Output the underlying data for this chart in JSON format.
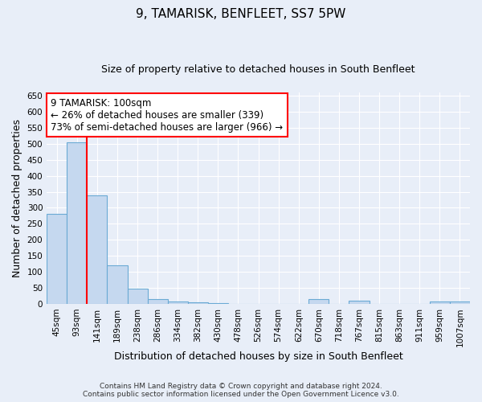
{
  "title": "9, TAMARISK, BENFLEET, SS7 5PW",
  "subtitle": "Size of property relative to detached houses in South Benfleet",
  "xlabel": "Distribution of detached houses by size in South Benfleet",
  "ylabel": "Number of detached properties",
  "bins": [
    "45sqm",
    "93sqm",
    "141sqm",
    "189sqm",
    "238sqm",
    "286sqm",
    "334sqm",
    "382sqm",
    "430sqm",
    "478sqm",
    "526sqm",
    "574sqm",
    "622sqm",
    "670sqm",
    "718sqm",
    "767sqm",
    "815sqm",
    "863sqm",
    "911sqm",
    "959sqm",
    "1007sqm"
  ],
  "values": [
    280,
    505,
    338,
    120,
    47,
    15,
    8,
    5,
    2,
    0,
    0,
    0,
    0,
    15,
    0,
    10,
    0,
    0,
    0,
    7,
    7
  ],
  "bar_color": "#c5d8ef",
  "bar_edge_color": "#6aaad4",
  "red_line_x": 1.5,
  "annotation_line1": "9 TAMARISK: 100sqm",
  "annotation_line2": "← 26% of detached houses are smaller (339)",
  "annotation_line3": "73% of semi-detached houses are larger (966) →",
  "footer_line1": "Contains HM Land Registry data © Crown copyright and database right 2024.",
  "footer_line2": "Contains public sector information licensed under the Open Government Licence v3.0.",
  "ylim": [
    0,
    660
  ],
  "yticks": [
    0,
    50,
    100,
    150,
    200,
    250,
    300,
    350,
    400,
    450,
    500,
    550,
    600,
    650
  ],
  "plot_bg": "#e8eef8",
  "fig_bg": "#e8eef8",
  "grid_color": "#ffffff",
  "title_fontsize": 11,
  "subtitle_fontsize": 9,
  "label_fontsize": 9,
  "tick_fontsize": 7.5,
  "annot_fontsize": 8.5
}
